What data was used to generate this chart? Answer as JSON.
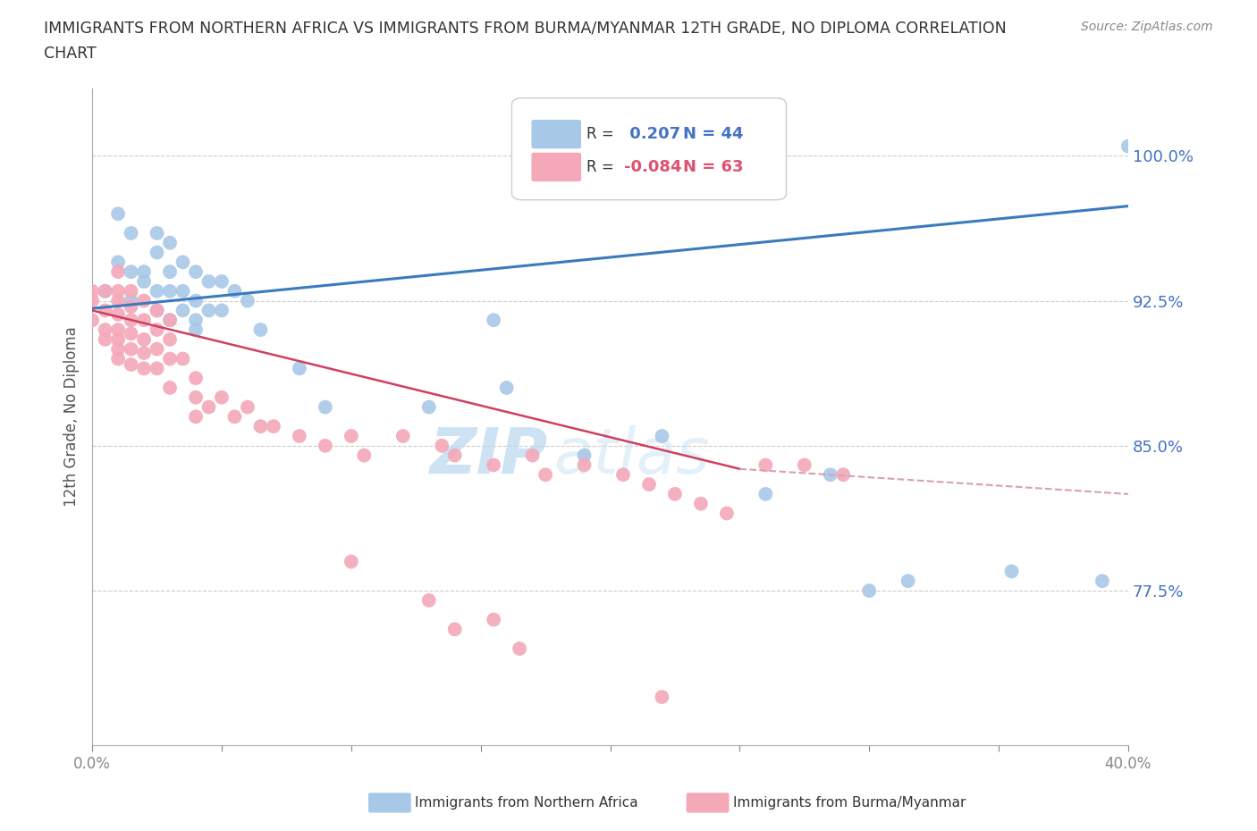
{
  "title_line1": "IMMIGRANTS FROM NORTHERN AFRICA VS IMMIGRANTS FROM BURMA/MYANMAR 12TH GRADE, NO DIPLOMA CORRELATION",
  "title_line2": "CHART",
  "source_text": "Source: ZipAtlas.com",
  "ylabel": "12th Grade, No Diploma",
  "xlim": [
    0.0,
    0.4
  ],
  "ylim": [
    0.695,
    1.035
  ],
  "yticks": [
    0.775,
    0.85,
    0.925,
    1.0
  ],
  "ytick_labels": [
    "77.5%",
    "85.0%",
    "92.5%",
    "100.0%"
  ],
  "xticks": [
    0.0,
    0.05,
    0.1,
    0.15,
    0.2,
    0.25,
    0.3,
    0.35,
    0.4
  ],
  "xtick_labels": [
    "0.0%",
    "",
    "",
    "",
    "",
    "",
    "",
    "",
    "40.0%"
  ],
  "blue_color": "#a8c8e8",
  "pink_color": "#f4a8b8",
  "blue_line_color": "#3a7abf",
  "pink_line_color": "#d04060",
  "pink_dash_color": "#d8a0b0",
  "blue_R": 0.207,
  "blue_N": 44,
  "pink_R": -0.084,
  "pink_N": 63,
  "legend_label_blue": "Immigrants from Northern Africa",
  "legend_label_pink": "Immigrants from Burma/Myanmar",
  "watermark_zip": "ZIP",
  "watermark_atlas": "atlas",
  "blue_scatter_x": [
    0.005,
    0.01,
    0.01,
    0.015,
    0.015,
    0.015,
    0.02,
    0.02,
    0.025,
    0.025,
    0.025,
    0.025,
    0.03,
    0.03,
    0.03,
    0.03,
    0.035,
    0.035,
    0.035,
    0.04,
    0.04,
    0.04,
    0.04,
    0.045,
    0.045,
    0.05,
    0.05,
    0.055,
    0.06,
    0.065,
    0.08,
    0.09,
    0.13,
    0.155,
    0.16,
    0.19,
    0.22,
    0.26,
    0.285,
    0.3,
    0.315,
    0.355,
    0.39,
    0.4
  ],
  "blue_scatter_y": [
    0.93,
    0.97,
    0.945,
    0.96,
    0.94,
    0.925,
    0.94,
    0.935,
    0.96,
    0.95,
    0.93,
    0.92,
    0.955,
    0.94,
    0.93,
    0.915,
    0.945,
    0.93,
    0.92,
    0.94,
    0.925,
    0.915,
    0.91,
    0.935,
    0.92,
    0.935,
    0.92,
    0.93,
    0.925,
    0.91,
    0.89,
    0.87,
    0.87,
    0.915,
    0.88,
    0.845,
    0.855,
    0.825,
    0.835,
    0.775,
    0.78,
    0.785,
    0.78,
    1.005
  ],
  "pink_scatter_x": [
    0.0,
    0.0,
    0.0,
    0.005,
    0.005,
    0.005,
    0.005,
    0.01,
    0.01,
    0.01,
    0.01,
    0.01,
    0.01,
    0.01,
    0.01,
    0.015,
    0.015,
    0.015,
    0.015,
    0.015,
    0.015,
    0.02,
    0.02,
    0.02,
    0.02,
    0.02,
    0.025,
    0.025,
    0.025,
    0.025,
    0.03,
    0.03,
    0.03,
    0.03,
    0.035,
    0.04,
    0.04,
    0.04,
    0.045,
    0.05,
    0.055,
    0.06,
    0.065,
    0.07,
    0.08,
    0.09,
    0.1,
    0.105,
    0.12,
    0.135,
    0.14,
    0.155,
    0.17,
    0.175,
    0.19,
    0.205,
    0.215,
    0.225,
    0.235,
    0.245,
    0.26,
    0.275,
    0.29
  ],
  "pink_scatter_y": [
    0.93,
    0.925,
    0.915,
    0.93,
    0.92,
    0.91,
    0.905,
    0.94,
    0.93,
    0.925,
    0.918,
    0.91,
    0.905,
    0.9,
    0.895,
    0.93,
    0.922,
    0.915,
    0.908,
    0.9,
    0.892,
    0.925,
    0.915,
    0.905,
    0.898,
    0.89,
    0.92,
    0.91,
    0.9,
    0.89,
    0.915,
    0.905,
    0.895,
    0.88,
    0.895,
    0.885,
    0.875,
    0.865,
    0.87,
    0.875,
    0.865,
    0.87,
    0.86,
    0.86,
    0.855,
    0.85,
    0.855,
    0.845,
    0.855,
    0.85,
    0.845,
    0.84,
    0.845,
    0.835,
    0.84,
    0.835,
    0.83,
    0.825,
    0.82,
    0.815,
    0.84,
    0.84,
    0.835
  ],
  "pink_low_x": [
    0.1,
    0.13,
    0.14,
    0.155,
    0.165,
    0.22
  ],
  "pink_low_y": [
    0.79,
    0.77,
    0.755,
    0.76,
    0.745,
    0.72
  ]
}
